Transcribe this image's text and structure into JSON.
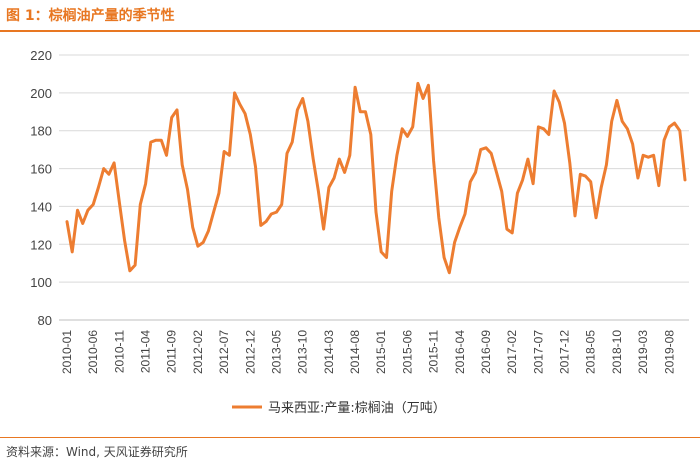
{
  "header": {
    "title": "图 1：棕榈油产量的季节性"
  },
  "footer": {
    "source": "资料来源：Wind, 天风证券研究所"
  },
  "chart_data": {
    "type": "line",
    "title": "",
    "xlabel": "",
    "ylabel": "",
    "ylim": [
      80,
      220
    ],
    "yticks": [
      80,
      100,
      120,
      140,
      160,
      180,
      200,
      220
    ],
    "xticks": [
      "2010-01",
      "2010-06",
      "2010-11",
      "2011-04",
      "2011-09",
      "2012-02",
      "2012-07",
      "2012-12",
      "2013-05",
      "2013-10",
      "2014-03",
      "2014-08",
      "2015-01",
      "2015-06",
      "2015-11",
      "2016-04",
      "2016-09",
      "2017-02",
      "2017-07",
      "2017-12",
      "2018-05",
      "2018-10",
      "2019-03",
      "2019-08"
    ],
    "grid": "horizontal",
    "legend": "bottom",
    "colors": {
      "series": "#ED7D31",
      "title": "#E87722"
    },
    "series": [
      {
        "name": "马来西亚:产量:棕榈油（万吨）",
        "values": [
          132,
          116,
          138,
          131,
          138,
          141,
          150,
          160,
          157,
          163,
          142,
          122,
          106,
          109,
          141,
          152,
          174,
          175,
          175,
          167,
          187,
          191,
          162,
          149,
          129,
          119,
          121,
          127,
          137,
          147,
          169,
          167,
          200,
          194,
          189,
          178,
          161,
          130,
          132,
          136,
          137,
          141,
          168,
          174,
          191,
          197,
          185,
          165,
          148,
          128,
          150,
          155,
          165,
          158,
          167,
          203,
          190,
          190,
          178,
          137,
          116,
          113,
          148,
          167,
          181,
          177,
          182,
          205,
          197,
          204,
          164,
          134,
          113,
          105,
          121,
          129,
          136,
          153,
          158,
          170,
          171,
          168,
          158,
          148,
          128,
          126,
          147,
          154,
          165,
          152,
          182,
          181,
          178,
          201,
          195,
          184,
          163,
          135,
          157,
          156,
          153,
          134,
          150,
          162,
          185,
          196,
          185,
          181,
          173,
          155,
          167,
          166,
          167,
          151,
          175,
          182,
          184,
          180,
          154
        ]
      }
    ]
  }
}
